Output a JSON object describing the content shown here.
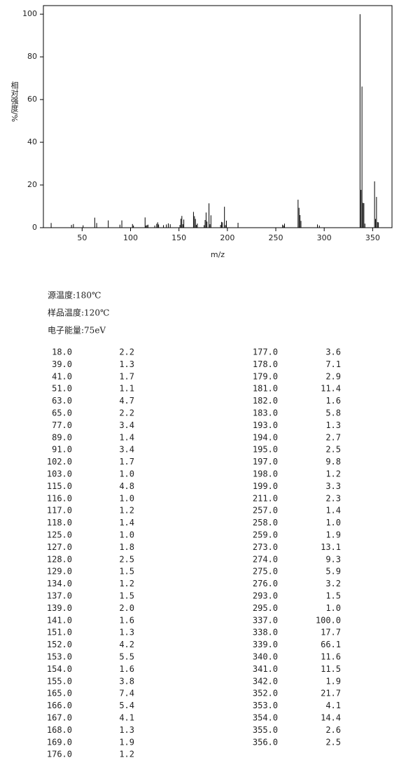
{
  "chart_data": {
    "type": "bar",
    "x_label": "m/z",
    "y_label": "相对强度/%",
    "xlim": [
      10,
      370
    ],
    "xticks": [
      50,
      100,
      150,
      200,
      250,
      300,
      350
    ],
    "ylim": [
      0,
      104
    ],
    "yticks": [
      0,
      20,
      40,
      60,
      80,
      100
    ],
    "color": "#000000",
    "x": [
      18,
      39,
      41,
      51,
      63,
      65,
      77,
      89,
      91,
      102,
      103,
      115,
      116,
      117,
      118,
      125,
      127,
      128,
      129,
      134,
      137,
      139,
      141,
      151,
      152,
      153,
      154,
      155,
      165,
      166,
      167,
      168,
      169,
      176,
      177,
      178,
      179,
      181,
      182,
      183,
      193,
      194,
      195,
      197,
      198,
      199,
      211,
      257,
      258,
      259,
      273,
      274,
      275,
      276,
      293,
      295,
      337,
      338,
      339,
      340,
      341,
      342,
      352,
      353,
      354,
      355,
      356
    ],
    "x_labels": [
      "18.0",
      "39.0",
      "41.0",
      "51.0",
      "63.0",
      "65.0",
      "77.0",
      "89.0",
      "91.0",
      "102.0",
      "103.0",
      "115.0",
      "116.0",
      "117.0",
      "118.0",
      "125.0",
      "127.0",
      "128.0",
      "129.0",
      "134.0",
      "137.0",
      "139.0",
      "141.0",
      "151.0",
      "152.0",
      "153.0",
      "154.0",
      "155.0",
      "165.0",
      "166.0",
      "167.0",
      "168.0",
      "169.0",
      "176.0",
      "177.0",
      "178.0",
      "179.0",
      "181.0",
      "182.0",
      "183.0",
      "193.0",
      "194.0",
      "195.0",
      "197.0",
      "198.0",
      "199.0",
      "211.0",
      "257.0",
      "258.0",
      "259.0",
      "273.0",
      "274.0",
      "275.0",
      "276.0",
      "293.0",
      "295.0",
      "337.0",
      "338.0",
      "339.0",
      "340.0",
      "341.0",
      "342.0",
      "352.0",
      "353.0",
      "354.0",
      "355.0",
      "356.0"
    ],
    "values": [
      2.2,
      1.3,
      1.7,
      1.1,
      4.7,
      2.2,
      3.4,
      1.4,
      3.4,
      1.7,
      1.0,
      4.8,
      1.0,
      1.2,
      1.4,
      1.0,
      1.8,
      2.5,
      1.5,
      1.2,
      1.5,
      2.0,
      1.6,
      1.3,
      4.2,
      5.5,
      1.6,
      3.8,
      7.4,
      5.4,
      4.1,
      1.3,
      1.9,
      1.2,
      3.6,
      7.1,
      2.9,
      11.4,
      1.6,
      5.8,
      1.3,
      2.7,
      2.5,
      9.8,
      1.2,
      3.3,
      2.3,
      1.4,
      1.0,
      1.9,
      13.1,
      9.3,
      5.9,
      3.2,
      1.5,
      1.0,
      100.0,
      17.7,
      66.1,
      11.6,
      11.5,
      1.9,
      21.7,
      4.1,
      14.4,
      2.6,
      2.5
    ],
    "value_labels": [
      "2.2",
      "1.3",
      "1.7",
      "1.1",
      "4.7",
      "2.2",
      "3.4",
      "1.4",
      "3.4",
      "1.7",
      "1.0",
      "4.8",
      "1.0",
      "1.2",
      "1.4",
      "1.0",
      "1.8",
      "2.5",
      "1.5",
      "1.2",
      "1.5",
      "2.0",
      "1.6",
      "1.3",
      "4.2",
      "5.5",
      "1.6",
      "3.8",
      "7.4",
      "5.4",
      "4.1",
      "1.3",
      "1.9",
      "1.2",
      "3.6",
      "7.1",
      "2.9",
      "11.4",
      "1.6",
      "5.8",
      "1.3",
      "2.7",
      "2.5",
      "9.8",
      "1.2",
      "3.3",
      "2.3",
      "1.4",
      "1.0",
      "1.9",
      "13.1",
      "9.3",
      "5.9",
      "3.2",
      "1.5",
      "1.0",
      "100.0",
      "17.7",
      "66.1",
      "11.6",
      "11.5",
      "1.9",
      "21.7",
      "4.1",
      "14.4",
      "2.6",
      "2.5"
    ]
  },
  "conditions": [
    "源温度:180℃",
    "样品温度:120℃",
    "电子能量:75eV"
  ]
}
